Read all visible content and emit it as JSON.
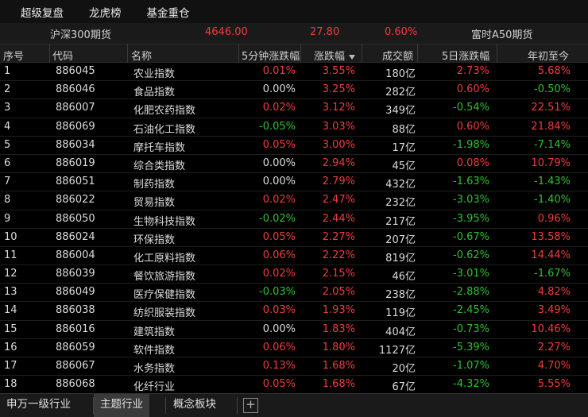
{
  "topnav": [
    "超级复盘",
    "龙虎榜",
    "基金重仓"
  ],
  "ticker": {
    "name": "沪深300期货",
    "price": "4646.00",
    "change": "27.80",
    "pct": "0.60%",
    "other": "富时A50期货"
  },
  "headers": {
    "idx": "序号",
    "code": "代码",
    "name": "名称",
    "m5": "5分钟涨跌幅",
    "chg": "涨跌幅",
    "vol": "成交额",
    "d5": "5日涨跌幅",
    "ytd": "年初至今"
  },
  "colors": {
    "up": "#f03c3c",
    "down": "#30c030"
  },
  "rows": [
    {
      "idx": "1",
      "code": "886045",
      "name": "农业指数",
      "m5": "0.01%",
      "chg": "3.55%",
      "vol": "180亿",
      "d5": "2.73%",
      "ytd": "5.68%"
    },
    {
      "idx": "2",
      "code": "886046",
      "name": "食品指数",
      "m5": "0.00%",
      "chg": "3.25%",
      "vol": "282亿",
      "d5": "0.60%",
      "ytd": "-0.50%"
    },
    {
      "idx": "3",
      "code": "886007",
      "name": "化肥农药指数",
      "m5": "0.02%",
      "chg": "3.12%",
      "vol": "349亿",
      "d5": "-0.54%",
      "ytd": "22.51%"
    },
    {
      "idx": "4",
      "code": "886069",
      "name": "石油化工指数",
      "m5": "-0.05%",
      "chg": "3.03%",
      "vol": "88亿",
      "d5": "0.60%",
      "ytd": "21.84%"
    },
    {
      "idx": "5",
      "code": "886034",
      "name": "摩托车指数",
      "m5": "0.05%",
      "chg": "3.00%",
      "vol": "17亿",
      "d5": "-1.98%",
      "ytd": "-7.14%"
    },
    {
      "idx": "6",
      "code": "886019",
      "name": "综合类指数",
      "m5": "0.00%",
      "chg": "2.94%",
      "vol": "45亿",
      "d5": "0.08%",
      "ytd": "10.79%"
    },
    {
      "idx": "7",
      "code": "886051",
      "name": "制药指数",
      "m5": "0.00%",
      "chg": "2.79%",
      "vol": "432亿",
      "d5": "-1.63%",
      "ytd": "-1.43%"
    },
    {
      "idx": "8",
      "code": "886022",
      "name": "贸易指数",
      "m5": "0.02%",
      "chg": "2.47%",
      "vol": "232亿",
      "d5": "-3.03%",
      "ytd": "-1.40%"
    },
    {
      "idx": "9",
      "code": "886050",
      "name": "生物科技指数",
      "m5": "-0.02%",
      "chg": "2.44%",
      "vol": "217亿",
      "d5": "-3.95%",
      "ytd": "0.96%"
    },
    {
      "idx": "10",
      "code": "886024",
      "name": "环保指数",
      "m5": "0.05%",
      "chg": "2.27%",
      "vol": "207亿",
      "d5": "-0.67%",
      "ytd": "13.58%"
    },
    {
      "idx": "11",
      "code": "886004",
      "name": "化工原料指数",
      "m5": "0.06%",
      "chg": "2.22%",
      "vol": "819亿",
      "d5": "-0.62%",
      "ytd": "14.44%"
    },
    {
      "idx": "12",
      "code": "886039",
      "name": "餐饮旅游指数",
      "m5": "0.02%",
      "chg": "2.15%",
      "vol": "46亿",
      "d5": "-3.01%",
      "ytd": "-1.67%"
    },
    {
      "idx": "13",
      "code": "886049",
      "name": "医疗保健指数",
      "m5": "-0.03%",
      "chg": "2.05%",
      "vol": "238亿",
      "d5": "-2.88%",
      "ytd": "4.82%"
    },
    {
      "idx": "14",
      "code": "886038",
      "name": "纺织服装指数",
      "m5": "0.03%",
      "chg": "1.93%",
      "vol": "119亿",
      "d5": "-2.45%",
      "ytd": "3.49%"
    },
    {
      "idx": "15",
      "code": "886016",
      "name": "建筑指数",
      "m5": "0.00%",
      "chg": "1.83%",
      "vol": "404亿",
      "d5": "-0.73%",
      "ytd": "10.46%"
    },
    {
      "idx": "16",
      "code": "886059",
      "name": "软件指数",
      "m5": "0.06%",
      "chg": "1.80%",
      "vol": "1127亿",
      "d5": "-5.39%",
      "ytd": "2.27%"
    },
    {
      "idx": "17",
      "code": "886067",
      "name": "水务指数",
      "m5": "0.13%",
      "chg": "1.68%",
      "vol": "20亿",
      "d5": "-1.07%",
      "ytd": "4.70%"
    },
    {
      "idx": "18",
      "code": "886068",
      "name": "化纤行业",
      "m5": "0.05%",
      "chg": "1.68%",
      "vol": "67亿",
      "d5": "-4.32%",
      "ytd": "5.55%"
    }
  ],
  "tabs": [
    "申万一级行业",
    "主题行业",
    "概念板块"
  ],
  "add_tab": "+"
}
